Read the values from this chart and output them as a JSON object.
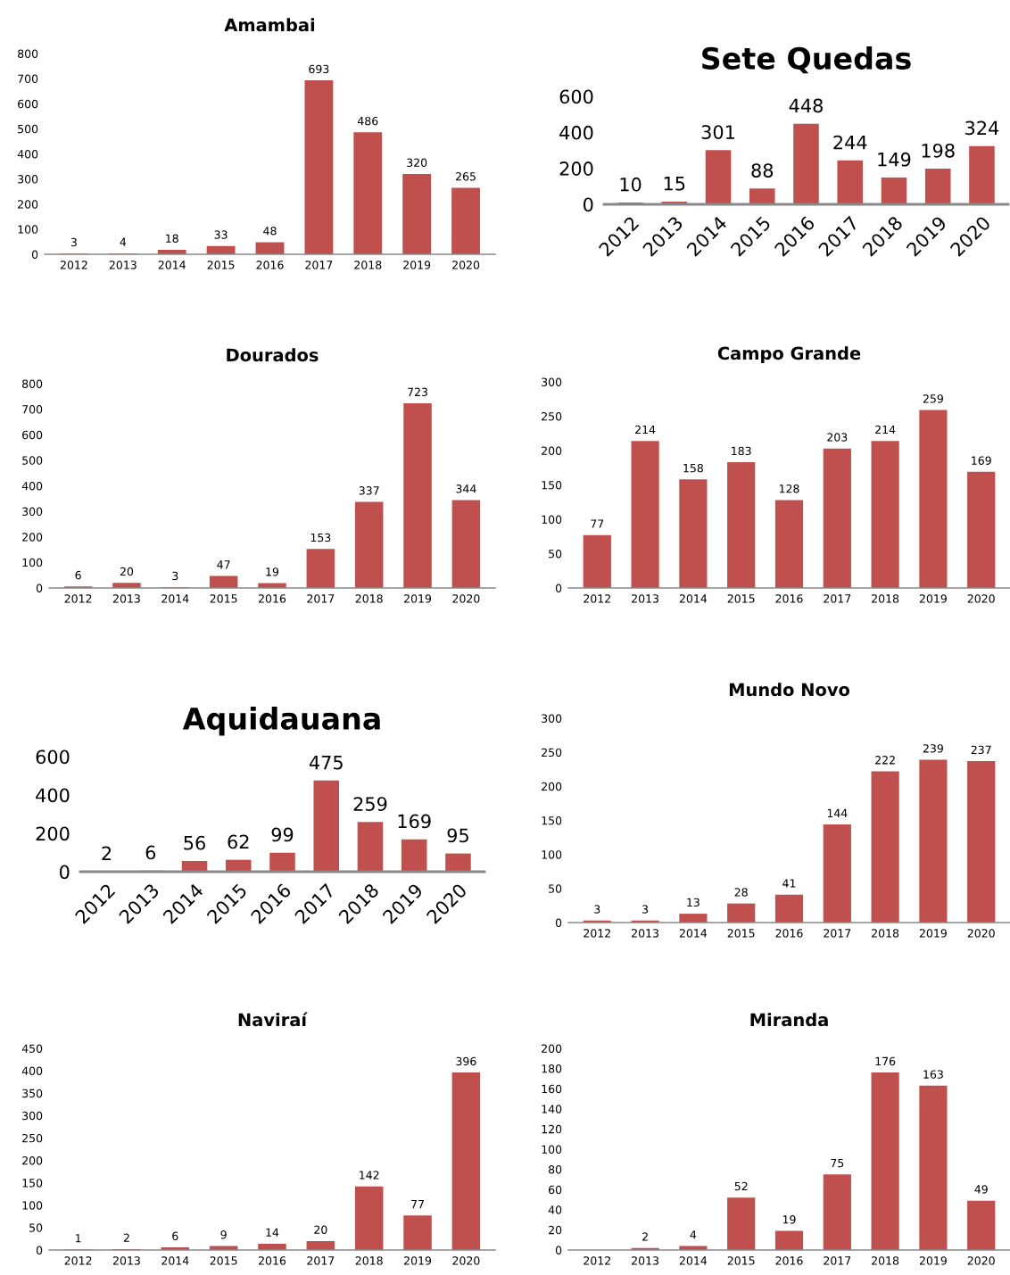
{
  "chart_data": [
    {
      "type": "bar",
      "title": "Amambai",
      "categories": [
        "2012",
        "2013",
        "2014",
        "2015",
        "2016",
        "2017",
        "2018",
        "2019",
        "2020"
      ],
      "values": [
        3,
        4,
        18,
        33,
        48,
        693,
        486,
        320,
        265
      ],
      "color": "#c0504d",
      "ylim": [
        0,
        800
      ],
      "yticks": [
        0,
        100,
        200,
        300,
        400,
        500,
        600,
        700,
        800
      ],
      "data_labels": true
    },
    {
      "type": "bar",
      "title": "Sete Quedas",
      "categories": [
        "2012",
        "2013",
        "2014",
        "2015",
        "2016",
        "2017",
        "2018",
        "2019",
        "2020"
      ],
      "values": [
        10,
        15,
        301,
        88,
        448,
        244,
        149,
        198,
        324
      ],
      "color": "#c0504d",
      "ylim": [
        0,
        600
      ],
      "yticks": [
        0,
        200,
        400,
        600
      ],
      "data_labels": true
    },
    {
      "type": "bar",
      "title": "Dourados",
      "categories": [
        "2012",
        "2013",
        "2014",
        "2015",
        "2016",
        "2017",
        "2018",
        "2019",
        "2020"
      ],
      "values": [
        6,
        20,
        3,
        47,
        19,
        153,
        337,
        723,
        344
      ],
      "color": "#c0504d",
      "ylim": [
        0,
        800
      ],
      "yticks": [
        0,
        100,
        200,
        300,
        400,
        500,
        600,
        700,
        800
      ],
      "data_labels": true
    },
    {
      "type": "bar",
      "title": "Campo Grande",
      "categories": [
        "2012",
        "2013",
        "2014",
        "2015",
        "2016",
        "2017",
        "2018",
        "2019",
        "2020"
      ],
      "values": [
        77,
        214,
        158,
        183,
        128,
        203,
        214,
        259,
        169
      ],
      "color": "#c0504d",
      "ylim": [
        0,
        300
      ],
      "yticks": [
        0,
        50,
        100,
        150,
        200,
        250,
        300
      ],
      "data_labels": true
    },
    {
      "type": "bar",
      "title": "Aquidauana",
      "categories": [
        "2012",
        "2013",
        "2014",
        "2015",
        "2016",
        "2017",
        "2018",
        "2019",
        "2020"
      ],
      "values": [
        2,
        6,
        56,
        62,
        99,
        475,
        259,
        169,
        95
      ],
      "color": "#c0504d",
      "ylim": [
        0,
        600
      ],
      "yticks": [
        0,
        200,
        400,
        600
      ],
      "data_labels": true
    },
    {
      "type": "bar",
      "title": "Mundo Novo",
      "categories": [
        "2012",
        "2013",
        "2014",
        "2015",
        "2016",
        "2017",
        "2018",
        "2019",
        "2020"
      ],
      "values": [
        3,
        3,
        13,
        28,
        41,
        144,
        222,
        239,
        237
      ],
      "color": "#c0504d",
      "ylim": [
        0,
        300
      ],
      "yticks": [
        0,
        50,
        100,
        150,
        200,
        250,
        300
      ],
      "data_labels": true
    },
    {
      "type": "bar",
      "title": "Naviraí",
      "categories": [
        "2012",
        "2013",
        "2014",
        "2015",
        "2016",
        "2017",
        "2018",
        "2019",
        "2020"
      ],
      "values": [
        1,
        2,
        6,
        9,
        14,
        20,
        142,
        77,
        396
      ],
      "color": "#c0504d",
      "ylim": [
        0,
        450
      ],
      "yticks": [
        0,
        50,
        100,
        150,
        200,
        250,
        300,
        350,
        400,
        450
      ],
      "data_labels": true
    },
    {
      "type": "bar",
      "title": "Miranda",
      "categories": [
        "2012",
        "2013",
        "2014",
        "2015",
        "2016",
        "2017",
        "2018",
        "2019",
        "2020"
      ],
      "values": [
        null,
        2,
        4,
        52,
        19,
        75,
        176,
        163,
        49
      ],
      "color": "#c0504d",
      "ylim": [
        0,
        200
      ],
      "yticks": [
        0,
        20,
        40,
        60,
        80,
        100,
        120,
        140,
        160,
        180,
        200
      ],
      "data_labels": true
    }
  ]
}
